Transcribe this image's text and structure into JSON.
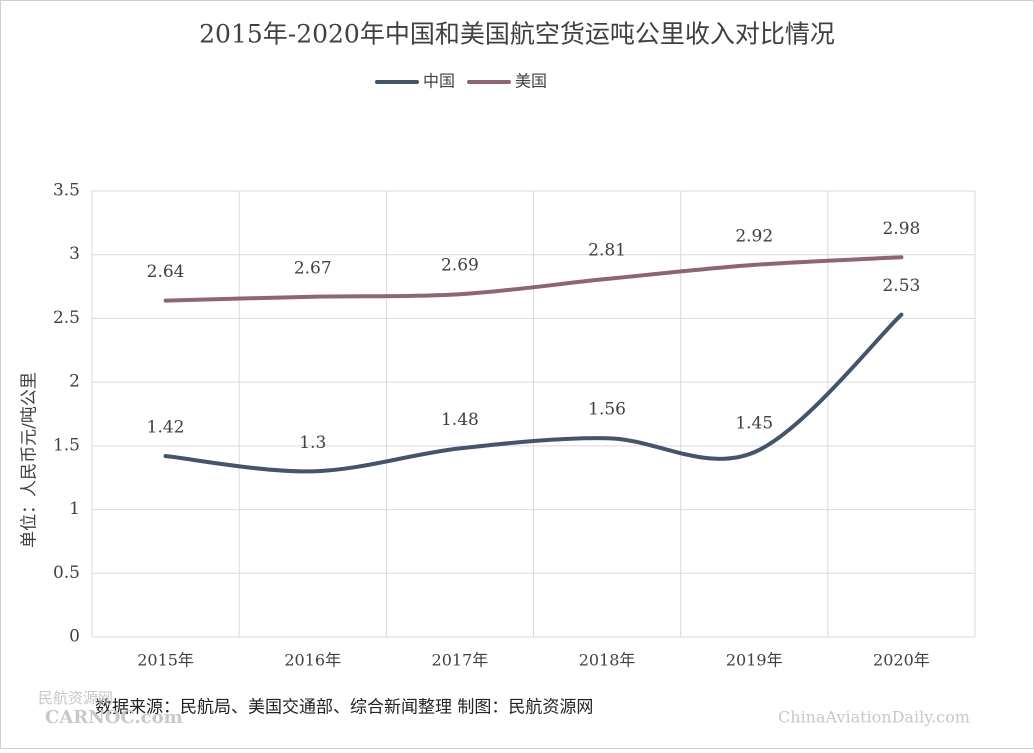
{
  "chart_data": {
    "type": "line",
    "title": "2015年-2020年中国和美国航空货运吨公里收入对比情况",
    "y_label": "单位：人民币元/吨公里",
    "categories": [
      "2015年",
      "2016年",
      "2017年",
      "2018年",
      "2019年",
      "2020年"
    ],
    "series": [
      {
        "name": "中国",
        "color": "#44546a",
        "values": [
          1.42,
          1.3,
          1.48,
          1.56,
          1.45,
          2.53
        ]
      },
      {
        "name": "美国",
        "color": "#8e6670",
        "values": [
          2.64,
          2.67,
          2.69,
          2.81,
          2.92,
          2.98
        ]
      }
    ],
    "ylim": [
      0,
      3.5
    ],
    "yticks": [
      0,
      0.5,
      1,
      1.5,
      2,
      2.5,
      3,
      3.5
    ],
    "grid": true,
    "legend": "top",
    "source": "数据来源：民航局、美国交通部、综合新闻整理 制图：民航资源网",
    "watermarks": [
      "民航资源网",
      "CARNOC.com",
      "ChinaAviationDaily.com"
    ]
  }
}
